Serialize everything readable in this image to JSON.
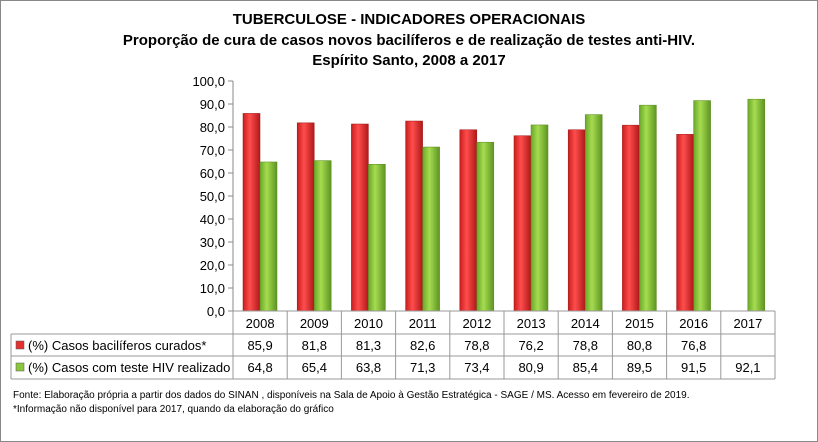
{
  "chart_data": {
    "type": "bar",
    "title": "TUBERCULOSE - INDICADORES OPERACIONAIS",
    "subtitle": [
      "Proporção de cura de casos novos bacilíferos e de realização de testes anti-HIV.",
      "Espírito Santo, 2008 a 2017"
    ],
    "categories": [
      "2008",
      "2009",
      "2010",
      "2011",
      "2012",
      "2013",
      "2014",
      "2015",
      "2016",
      "2017"
    ],
    "series": [
      {
        "name": "(%) Casos bacilíferos curados*",
        "color": "#e53030",
        "values": [
          85.9,
          81.8,
          81.3,
          82.6,
          78.8,
          76.2,
          78.8,
          80.8,
          76.8,
          null
        ],
        "labels": [
          "85,9",
          "81,8",
          "81,3",
          "82,6",
          "78,8",
          "76,2",
          "78,8",
          "80,8",
          "76,8",
          ""
        ]
      },
      {
        "name": "(%) Casos com teste HIV realizado",
        "color": "#8cc63f",
        "values": [
          64.8,
          65.4,
          63.8,
          71.3,
          73.4,
          80.9,
          85.4,
          89.5,
          91.5,
          92.1
        ],
        "labels": [
          "64,8",
          "65,4",
          "63,8",
          "71,3",
          "73,4",
          "80,9",
          "85,4",
          "89,5",
          "91,5",
          "92,1"
        ]
      }
    ],
    "ylim": [
      0,
      100
    ],
    "yticks": [
      "0,0",
      "10,0",
      "20,0",
      "30,0",
      "40,0",
      "50,0",
      "60,0",
      "70,0",
      "80,0",
      "90,0",
      "100,0"
    ],
    "legend": "data-table",
    "grid": false
  },
  "footnotes": [
    "Fonte: Elaboração própria a partir dos dados do SINAN , disponíveis na Sala de Apoio à Gestão Estratégica - SAGE / MS. Acesso em fevereiro de 2019.",
    "*Informação não disponível para 2017, quando da elaboração do gráfico"
  ]
}
